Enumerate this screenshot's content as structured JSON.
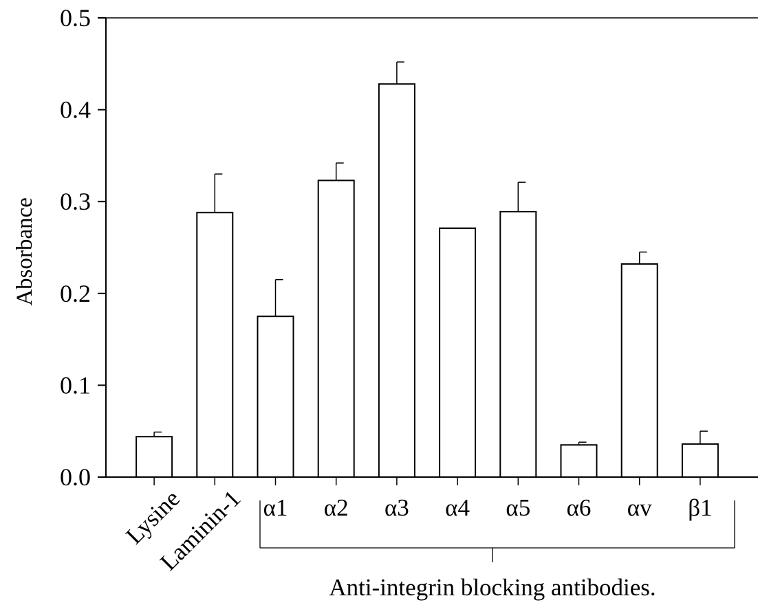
{
  "chart_data": {
    "type": "bar",
    "categories": [
      "Lysine",
      "Laminin-1",
      "α1",
      "α2",
      "α3",
      "α4",
      "α5",
      "α6",
      "αv",
      "β1"
    ],
    "values": [
      0.044,
      0.288,
      0.175,
      0.323,
      0.428,
      0.271,
      0.289,
      0.035,
      0.232,
      0.036
    ],
    "errors": [
      0.005,
      0.042,
      0.04,
      0.019,
      0.024,
      0.0,
      0.032,
      0.003,
      0.013,
      0.014
    ],
    "title": "",
    "xlabel": "",
    "ylabel": "Absorbance",
    "ylim": [
      0.0,
      0.5
    ],
    "yticks": [
      "0.0",
      "0.1",
      "0.2",
      "0.3",
      "0.4",
      "0.5"
    ],
    "group_label": "Anti-integrin blocking antibodies.",
    "grid": false,
    "bar_fill": "#ffffff",
    "bar_stroke": "#000000"
  }
}
